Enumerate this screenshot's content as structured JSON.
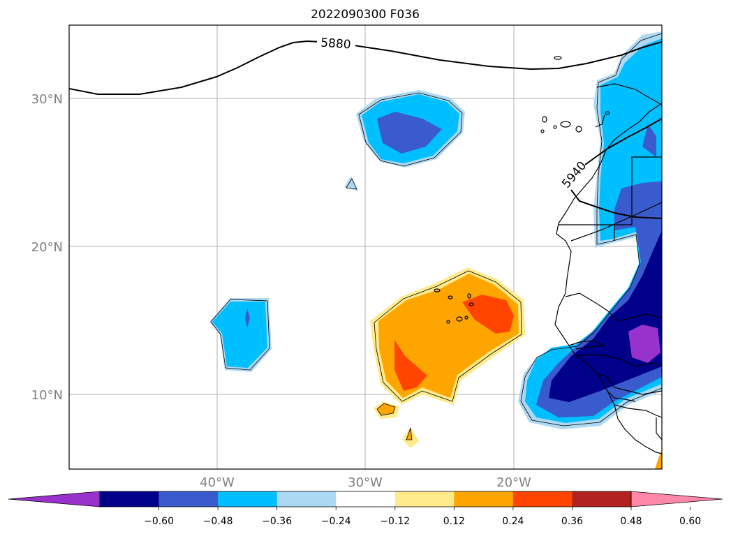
{
  "title": "2022090300 F036",
  "lat_labels": [
    "30°N",
    "20°N",
    "10°N"
  ],
  "lon_labels": [
    "40°W",
    "30°W",
    "20°W"
  ],
  "contour_labels": [
    "5880",
    "5940"
  ],
  "colorbar": {
    "ticks": [
      "−0.60",
      "−0.48",
      "−0.36",
      "−0.24",
      "−0.12",
      "0.12",
      "0.24",
      "0.36",
      "0.48",
      "0.60"
    ],
    "colors": [
      "#9932cc",
      "#00008b",
      "#3a5bcd",
      "#00bfff",
      "#add8f3",
      "#ffffff",
      "#ffeb8b",
      "#ffa500",
      "#ff4500",
      "#b22222",
      "#ff88aa"
    ]
  },
  "colors": {
    "purple": "#9932cc",
    "navy": "#00008b",
    "royal": "#3a5bcd",
    "sky": "#00bfff",
    "pale_blue": "#add8f3",
    "pale_yellow": "#ffeb8b",
    "orange": "#ffa500",
    "red_orange": "#ff4500"
  }
}
